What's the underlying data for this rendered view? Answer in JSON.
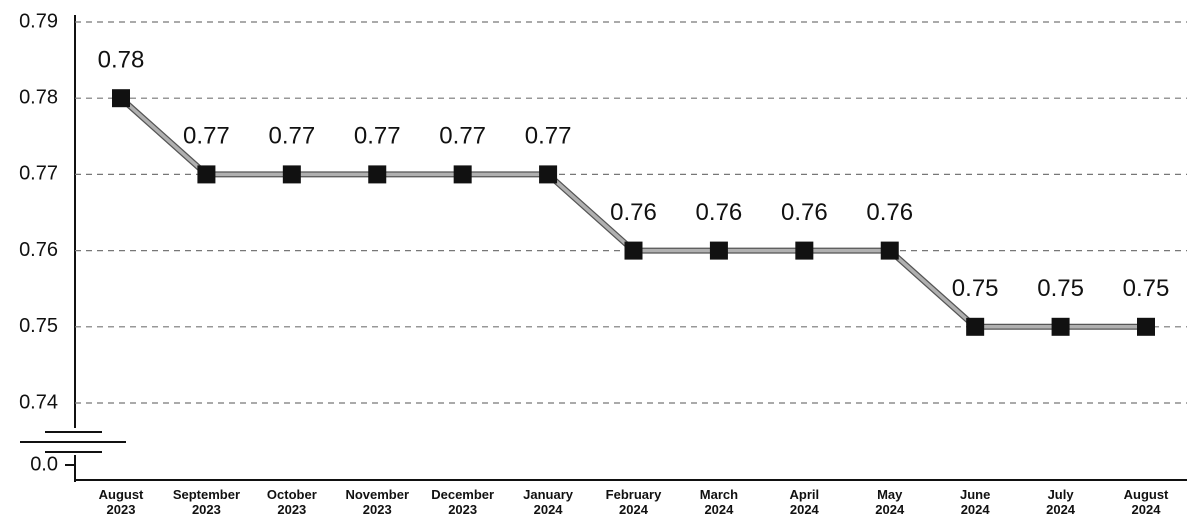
{
  "chart_data": {
    "type": "line",
    "categories": [
      "August 2023",
      "September 2023",
      "October 2023",
      "November 2023",
      "December 2023",
      "January 2024",
      "February 2024",
      "March 2024",
      "April 2024",
      "May 2024",
      "June 2024",
      "July 2024",
      "August 2024"
    ],
    "series": [
      {
        "name": null,
        "color": "#b0b0b0",
        "values": [
          0.78,
          0.77,
          0.77,
          0.77,
          0.77,
          0.77,
          0.76,
          0.76,
          0.76,
          0.76,
          0.75,
          0.75,
          0.75
        ]
      }
    ],
    "ylim": [
      0.74,
      0.79
    ],
    "yticks": [
      {
        "value": 0,
        "label": "0.0"
      },
      0.74,
      0.75,
      0.76,
      0.77,
      0.78,
      0.79
    ],
    "axis_break": true,
    "grid": true
  }
}
